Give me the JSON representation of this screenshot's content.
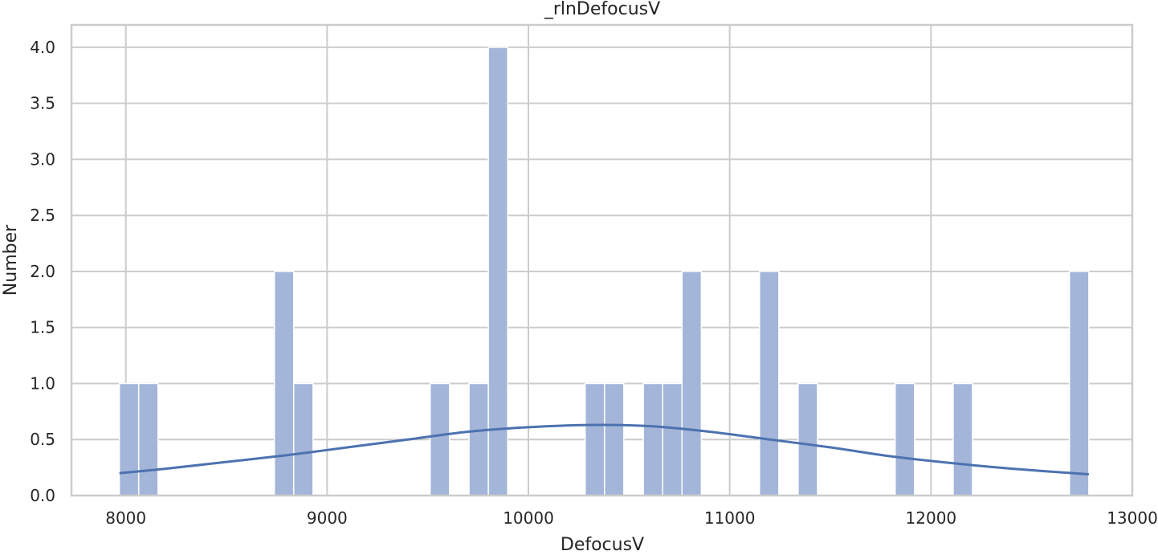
{
  "chart_data": {
    "type": "bar",
    "subtype": "histogram-with-kde",
    "title": "_rlnDefocusV",
    "xlabel": "DefocusV",
    "ylabel": "Number",
    "xlim": [
      7730,
      13000
    ],
    "ylim": [
      0,
      4.2
    ],
    "x_ticks": [
      8000,
      9000,
      10000,
      11000,
      12000,
      13000
    ],
    "y_ticks": [
      0.0,
      0.5,
      1.0,
      1.5,
      2.0,
      2.5,
      3.0,
      3.5,
      4.0
    ],
    "y_tick_labels": [
      "0.0",
      "0.5",
      "1.0",
      "1.5",
      "2.0",
      "2.5",
      "3.0",
      "3.5",
      "4.0"
    ],
    "x_tick_labels": [
      "8000",
      "9000",
      "10000",
      "11000",
      "12000",
      "13000"
    ],
    "grid": true,
    "bin_edges_range": [
      7968,
      12784
    ],
    "bin_width": 96.3,
    "bins": [
      {
        "x_start": 7968,
        "x_end": 8064,
        "count": 1
      },
      {
        "x_start": 8064,
        "x_end": 8160,
        "count": 1
      },
      {
        "x_start": 8738,
        "x_end": 8834,
        "count": 2
      },
      {
        "x_start": 8834,
        "x_end": 8930,
        "count": 1
      },
      {
        "x_start": 9512,
        "x_end": 9608,
        "count": 1
      },
      {
        "x_start": 9705,
        "x_end": 9801,
        "count": 1
      },
      {
        "x_start": 9801,
        "x_end": 9897,
        "count": 4
      },
      {
        "x_start": 10282,
        "x_end": 10378,
        "count": 1
      },
      {
        "x_start": 10378,
        "x_end": 10474,
        "count": 1
      },
      {
        "x_start": 10571,
        "x_end": 10667,
        "count": 1
      },
      {
        "x_start": 10667,
        "x_end": 10763,
        "count": 1
      },
      {
        "x_start": 10763,
        "x_end": 10859,
        "count": 2
      },
      {
        "x_start": 11148,
        "x_end": 11244,
        "count": 2
      },
      {
        "x_start": 11340,
        "x_end": 11436,
        "count": 1
      },
      {
        "x_start": 11822,
        "x_end": 11918,
        "count": 1
      },
      {
        "x_start": 12110,
        "x_end": 12206,
        "count": 1
      },
      {
        "x_start": 12688,
        "x_end": 12784,
        "count": 2
      }
    ],
    "kde": {
      "x": [
        7968,
        8200,
        8500,
        8800,
        9100,
        9400,
        9700,
        10000,
        10300,
        10600,
        10900,
        11200,
        11500,
        11800,
        12100,
        12400,
        12784
      ],
      "y": [
        0.2,
        0.24,
        0.3,
        0.36,
        0.43,
        0.5,
        0.57,
        0.61,
        0.63,
        0.62,
        0.57,
        0.5,
        0.43,
        0.35,
        0.29,
        0.24,
        0.19
      ]
    },
    "colors": {
      "bar_fill": "#a3b5d8",
      "bar_edge": "#ffffff",
      "kde_line": "#4c72b0",
      "grid": "#cccccc",
      "frame": "#cccccc",
      "text": "#262626"
    }
  }
}
